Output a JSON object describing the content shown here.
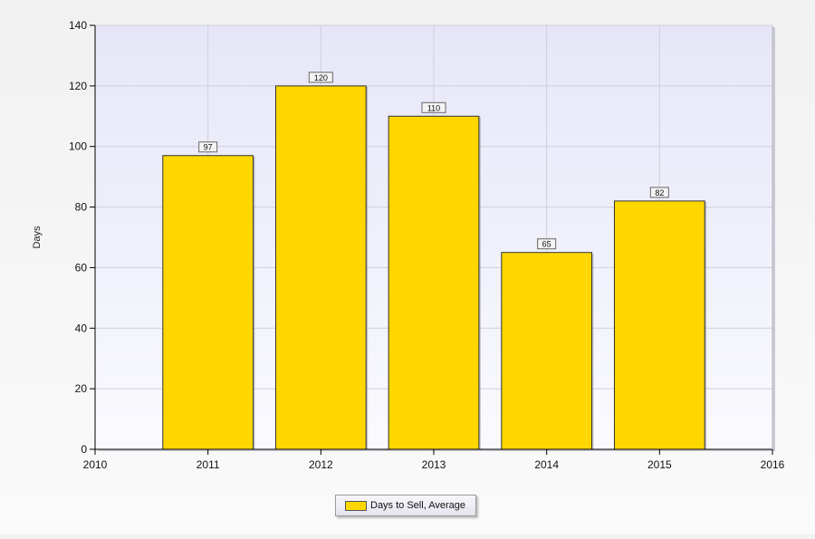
{
  "chart_data": {
    "type": "bar",
    "ylabel": "Days",
    "xlabel": "",
    "x_ticks": [
      "2010",
      "2011",
      "2012",
      "2013",
      "2014",
      "2015",
      "2016"
    ],
    "xlim": [
      2010,
      2016
    ],
    "ylim": [
      0,
      140
    ],
    "y_ticks": [
      0,
      20,
      40,
      60,
      80,
      100,
      120,
      140
    ],
    "categories": [
      "2011",
      "2012",
      "2013",
      "2014",
      "2015"
    ],
    "series": [
      {
        "name": "Days to Sell, Average",
        "values": [
          97,
          120,
          110,
          65,
          82
        ],
        "color": "#ffd700"
      }
    ],
    "data_labels": [
      "97",
      "120",
      "110",
      "65",
      "82"
    ],
    "grid": true,
    "legend": "bottom-center",
    "plot_background": "#e8e8f8"
  }
}
